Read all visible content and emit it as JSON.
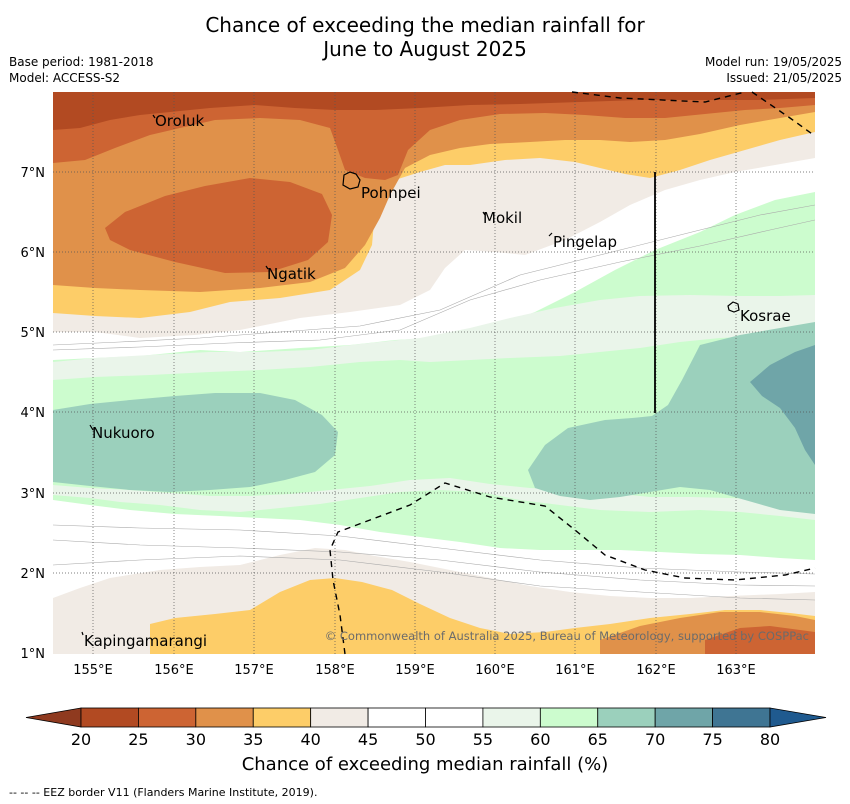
{
  "header": {
    "title_line1": "Chance of exceeding the median rainfall for",
    "title_line2": "June to August 2025",
    "base_period": "Base period: 1981-2018",
    "model": "Model: ACCESS-S2",
    "model_run": "Model run: 19/05/2025",
    "issued": "Issued: 21/05/2025"
  },
  "map": {
    "lat_labels": [
      "1°N",
      "2°N",
      "3°N",
      "4°N",
      "5°N",
      "6°N",
      "7°N"
    ],
    "lon_labels": [
      "155°E",
      "156°E",
      "157°E",
      "158°E",
      "159°E",
      "160°E",
      "161°E",
      "162°E",
      "163°E"
    ],
    "places": [
      "Oroluk",
      "Pohnpei",
      "Mokil",
      "Pingelap",
      "Ngatik",
      "Kosrae",
      "Nukuoro",
      "Kapingamarangi"
    ],
    "copyright": "© Commonwealth of Australia 2025, Bureau of Meteorology, supported by COSPPac"
  },
  "colorbar": {
    "ticks": [
      "20",
      "25",
      "30",
      "35",
      "40",
      "45",
      "50",
      "55",
      "60",
      "65",
      "70",
      "75",
      "80"
    ],
    "colors": [
      "#b24a22",
      "#cd6433",
      "#e0914a",
      "#fdcd68",
      "#f1ebe5",
      "#ffffff",
      "#ffffff",
      "#eaf5ea",
      "#ccfcce",
      "#9bd0bc",
      "#6fa5a8",
      "#3f7593",
      "#1f5a8f"
    ],
    "lowest_color": "#8f3a1f",
    "title": "Chance of exceeding median rainfall (%)"
  },
  "footnote": "-- -- -- EEZ border V11 (Flanders Marine Institute, 2019)."
}
